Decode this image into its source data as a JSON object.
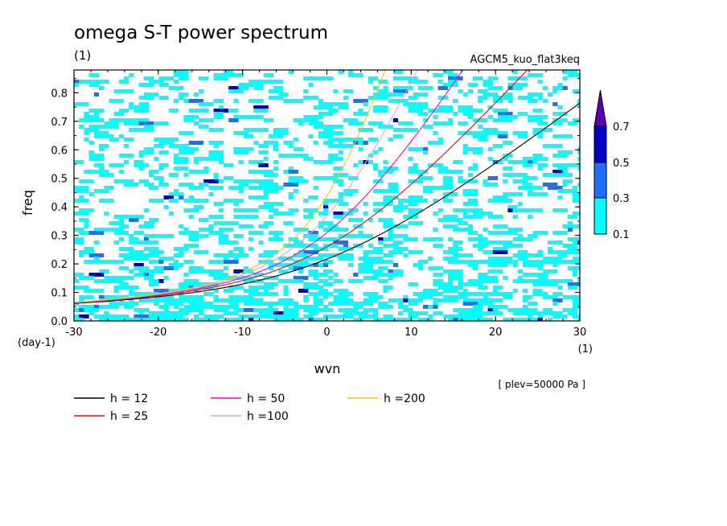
{
  "chart_data": {
    "type": "heatmap",
    "title": "omega S-T power spectrum",
    "title_unit": "(1)",
    "subtitle_right": "AGCM5_kuo_flat3keq",
    "xlabel": "wvn",
    "ylabel": "freq",
    "x_unit": "(1)",
    "y_unit": "(day-1)",
    "xlim": [
      -30,
      30
    ],
    "ylim": [
      0,
      0.88
    ],
    "xticks": [
      -30,
      -20,
      -10,
      0,
      10,
      20,
      30
    ],
    "xtick_labels": [
      "-30",
      "-20",
      "-10",
      "0",
      "10",
      "20",
      "30"
    ],
    "yticks": [
      0.0,
      0.1,
      0.2,
      0.3,
      0.4,
      0.5,
      0.6,
      0.7,
      0.8
    ],
    "ytick_labels": [
      "0.0",
      "0.1",
      "0.2",
      "0.3",
      "0.4",
      "0.5",
      "0.6",
      "0.7",
      "0.8"
    ],
    "annotation": "[ plev=50000 Pa ]",
    "colorbar": {
      "levels": [
        "0.1",
        "0.3",
        "0.5",
        "0.7"
      ],
      "colors": [
        "#00ffff",
        "#1e6eff",
        "#0000c8",
        "#5a00b4"
      ]
    },
    "series": [
      {
        "name": "h = 12",
        "color": "#000000",
        "h": 12
      },
      {
        "name": "h = 25",
        "color": "#ff0000",
        "h": 25
      },
      {
        "name": "h = 50",
        "color": "#ff00c8",
        "h": 50
      },
      {
        "name": "h =100",
        "color": "#e6a0e6",
        "h": 100
      },
      {
        "name": "h =200",
        "color": "#f0c800",
        "h": 200
      }
    ],
    "legend_placement": "bottom-left"
  }
}
